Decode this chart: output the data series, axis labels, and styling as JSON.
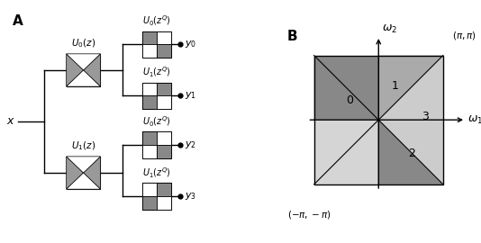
{
  "label_A": "A",
  "label_B": "B",
  "input_label": "x",
  "color_gray": "#808080",
  "color_bowtie": "#999999",
  "omega1_label": "$\\omega_1$",
  "omega2_label": "$\\omega_2$",
  "corner_top_right": "$(\\pi,\\pi)$",
  "corner_bot_left": "$(-\\pi,-\\pi)$",
  "background": "#FFFFFF",
  "tri_colors": {
    "region0_dark": "#888888",
    "region1_medium": "#AAAAAA",
    "region2_light": "#CCCCCC",
    "region3_vlight": "#C0C0C0",
    "left_lower_tri": "#DDDDDD",
    "right_upper_tri": "#CCCCCC",
    "bottom_left_tri": "#DDDDDD",
    "top_right_corner": "#BBBBBB"
  }
}
